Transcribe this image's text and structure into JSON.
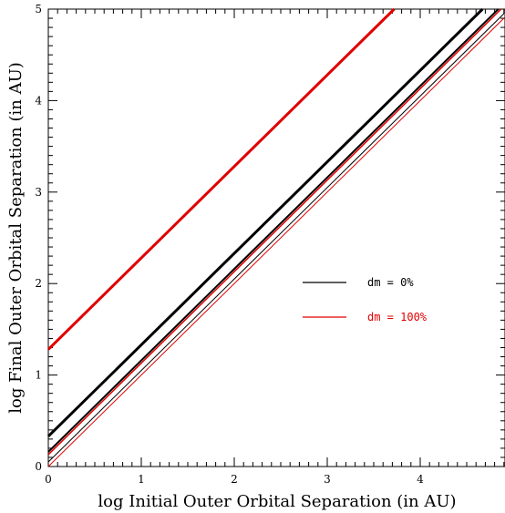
{
  "chart_data": {
    "type": "line",
    "xlabel": "log Initial Outer Orbital Separation (in AU)",
    "ylabel": "log Final Outer Orbital Separation (in AU)",
    "xlim": [
      0,
      4.9
    ],
    "ylim": [
      0,
      5
    ],
    "x_ticks": [
      "0",
      "1",
      "2",
      "3",
      "4"
    ],
    "y_ticks": [
      "0",
      "1",
      "2",
      "3",
      "4",
      "5"
    ],
    "grid": false,
    "legend_position": "center-right",
    "legend": [
      {
        "label": "dm = 0%",
        "color": "#000000"
      },
      {
        "label": "dm = 100%",
        "color": "#e00000"
      }
    ],
    "series": [
      {
        "color": "#e00000",
        "stroke_width": 3,
        "points": [
          [
            0,
            1.28
          ],
          [
            3.72,
            5.0
          ]
        ]
      },
      {
        "color": "#000000",
        "stroke_width": 3,
        "points": [
          [
            0,
            0.33
          ],
          [
            4.67,
            5.0
          ]
        ]
      },
      {
        "color": "#000000",
        "stroke_width": 2,
        "points": [
          [
            0,
            0.16
          ],
          [
            4.84,
            5.0
          ]
        ]
      },
      {
        "color": "#e00000",
        "stroke_width": 1.5,
        "points": [
          [
            0,
            0.13
          ],
          [
            4.87,
            5.0
          ]
        ]
      },
      {
        "color": "#000000",
        "stroke_width": 1,
        "points": [
          [
            0,
            0.05
          ],
          [
            4.9,
            4.95
          ]
        ]
      },
      {
        "color": "#e00000",
        "stroke_width": 1,
        "points": [
          [
            0,
            0.0
          ],
          [
            4.9,
            4.9
          ]
        ]
      }
    ]
  }
}
